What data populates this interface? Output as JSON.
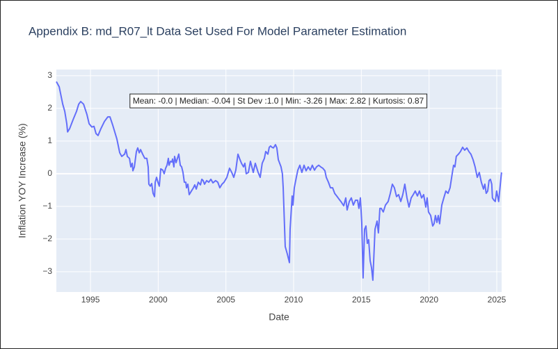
{
  "chart_data": {
    "type": "line",
    "title": "Appendix B: md_R07_lt Data Set Used For Model Parameter Estimation",
    "xlabel": "Date",
    "ylabel": "Inflation YOY Increase (%)",
    "annotation": "Mean: -0.0 | Median: -0.04 | St Dev :1.0 | Min: -3.26 | Max: 2.82 | Kurtosis: 0.87",
    "color": "#636efa",
    "grid": true,
    "xlim": [
      1992.48,
      2025.36
    ],
    "ylim": [
      -3.62,
      3.19
    ],
    "xticks": [
      1995,
      2000,
      2005,
      2010,
      2015,
      2020,
      2025
    ],
    "yticks": [
      {
        "value": -3,
        "label": "−3"
      },
      {
        "value": -2,
        "label": "−2"
      },
      {
        "value": -1,
        "label": "−1"
      },
      0,
      1,
      2,
      3
    ],
    "x": [
      1992.48,
      1992.69,
      1992.95,
      1993.1,
      1993.25,
      1993.31,
      1993.46,
      1993.72,
      1993.97,
      1994.13,
      1994.28,
      1994.49,
      1994.74,
      1994.9,
      1995.1,
      1995.26,
      1995.41,
      1995.56,
      1995.77,
      1996.03,
      1996.28,
      1996.44,
      1996.64,
      1996.95,
      1997.16,
      1997.31,
      1997.52,
      1997.62,
      1997.72,
      1997.88,
      1997.98,
      1998.08,
      1998.13,
      1998.24,
      1998.39,
      1998.49,
      1998.6,
      1998.7,
      1998.85,
      1999.01,
      1999.16,
      1999.26,
      1999.31,
      1999.42,
      1999.52,
      1999.62,
      1999.73,
      1999.78,
      1999.88,
      1999.98,
      2000.08,
      2000.19,
      2000.34,
      2000.44,
      2000.55,
      2000.65,
      2000.75,
      2000.8,
      2000.91,
      2001.01,
      2001.06,
      2001.16,
      2001.21,
      2001.32,
      2001.42,
      2001.52,
      2001.63,
      2001.73,
      2001.83,
      2001.93,
      2002.04,
      2002.09,
      2002.19,
      2002.29,
      2002.45,
      2002.6,
      2002.7,
      2002.81,
      2002.96,
      2003.12,
      2003.22,
      2003.32,
      2003.42,
      2003.58,
      2003.73,
      2003.89,
      2004.04,
      2004.24,
      2004.4,
      2004.55,
      2004.71,
      2004.86,
      2005.07,
      2005.27,
      2005.43,
      2005.58,
      2005.73,
      2005.89,
      2006.04,
      2006.15,
      2006.3,
      2006.4,
      2006.5,
      2006.66,
      2006.81,
      2007.02,
      2007.17,
      2007.38,
      2007.53,
      2007.68,
      2007.84,
      2007.94,
      2008.1,
      2008.2,
      2008.3,
      2008.4,
      2008.51,
      2008.66,
      2008.76,
      2008.87,
      2009.07,
      2009.17,
      2009.23,
      2009.38,
      2009.53,
      2009.69,
      2009.74,
      2009.89,
      2009.95,
      2010.05,
      2010.2,
      2010.31,
      2010.46,
      2010.61,
      2010.77,
      2010.92,
      2011.08,
      2011.23,
      2011.38,
      2011.54,
      2011.69,
      2011.85,
      2012.0,
      2012.15,
      2012.31,
      2012.41,
      2012.57,
      2012.72,
      2012.88,
      2013.03,
      2013.18,
      2013.34,
      2013.49,
      2013.7,
      2013.85,
      2013.95,
      2014.11,
      2014.26,
      2014.41,
      2014.57,
      2014.72,
      2014.82,
      2014.93,
      2015.03,
      2015.13,
      2015.24,
      2015.34,
      2015.44,
      2015.54,
      2015.65,
      2015.75,
      2015.85,
      2016.01,
      2016.16,
      2016.26,
      2016.37,
      2016.47,
      2016.62,
      2016.78,
      2016.98,
      2017.14,
      2017.29,
      2017.44,
      2017.6,
      2017.75,
      2017.91,
      2018.06,
      2018.21,
      2018.37,
      2018.52,
      2018.68,
      2018.83,
      2018.98,
      2019.14,
      2019.29,
      2019.45,
      2019.6,
      2019.76,
      2019.86,
      2019.96,
      2020.12,
      2020.27,
      2020.37,
      2020.47,
      2020.58,
      2020.68,
      2020.78,
      2020.94,
      2021.09,
      2021.24,
      2021.4,
      2021.55,
      2021.71,
      2021.81,
      2021.91,
      2022.01,
      2022.17,
      2022.32,
      2022.48,
      2022.63,
      2022.79,
      2022.94,
      2023.09,
      2023.25,
      2023.4,
      2023.56,
      2023.71,
      2023.86,
      2024.02,
      2024.12,
      2024.22,
      2024.33,
      2024.43,
      2024.53,
      2024.63,
      2024.68,
      2024.79,
      2024.89,
      2024.99,
      2025.14,
      2025.25,
      2025.35
    ],
    "values": [
      2.82,
      2.66,
      2.13,
      1.91,
      1.53,
      1.28,
      1.38,
      1.66,
      1.91,
      2.13,
      2.21,
      2.13,
      1.81,
      1.53,
      1.43,
      1.45,
      1.23,
      1.17,
      1.38,
      1.6,
      1.74,
      1.74,
      1.49,
      1.06,
      0.64,
      0.53,
      0.6,
      0.74,
      0.53,
      0.47,
      0.21,
      0.32,
      0.09,
      0.21,
      0.68,
      0.79,
      0.64,
      0.74,
      0.6,
      0.47,
      0.47,
      0.21,
      -0.32,
      -0.38,
      -0.3,
      -0.6,
      -0.7,
      -0.26,
      -0.11,
      -0.26,
      -0.38,
      0.15,
      0.11,
      0,
      0.17,
      0.26,
      0.47,
      0.26,
      0.38,
      0.36,
      0.45,
      0.21,
      0.53,
      0.34,
      0.47,
      0.6,
      0.26,
      0.21,
      0.04,
      -0.26,
      -0.26,
      -0.43,
      -0.32,
      -0.64,
      -0.53,
      -0.43,
      -0.34,
      -0.47,
      -0.26,
      -0.34,
      -0.17,
      -0.21,
      -0.32,
      -0.21,
      -0.26,
      -0.17,
      -0.28,
      -0.21,
      -0.26,
      -0.43,
      -0.32,
      -0.26,
      -0.11,
      0.17,
      0.04,
      -0.11,
      0.11,
      0.6,
      0.43,
      0.32,
      0.21,
      0.32,
      0,
      0.04,
      0.38,
      0.04,
      0.32,
      0.04,
      -0.11,
      0.32,
      0.47,
      0.68,
      0.6,
      0.81,
      0.85,
      0.81,
      0.79,
      0.89,
      0.79,
      0.43,
      0.21,
      0,
      -0.43,
      -2.23,
      -2.45,
      -2.72,
      -1.7,
      -0.68,
      -0.96,
      -0.43,
      -0.11,
      0.11,
      0.26,
      0.04,
      0.26,
      0.09,
      0.21,
      0.11,
      0.26,
      0.11,
      0.21,
      0.26,
      0.21,
      0.17,
      0.09,
      -0.11,
      -0.26,
      -0.43,
      -0.43,
      -0.6,
      -0.68,
      -0.77,
      -0.85,
      -0.98,
      -0.74,
      -1.11,
      -0.85,
      -0.74,
      -0.96,
      -0.81,
      -0.81,
      -1.06,
      -0.74,
      -1.49,
      -3.19,
      -1.7,
      -1.6,
      -2.13,
      -2.02,
      -2.66,
      -2.87,
      -3.26,
      -1.7,
      -1.45,
      -1.81,
      -1.06,
      -1.06,
      -1.17,
      -0.96,
      -0.85,
      -0.6,
      -0.32,
      -0.43,
      -0.7,
      -0.64,
      -0.85,
      -0.64,
      -0.32,
      -0.74,
      -1.02,
      -0.74,
      -0.64,
      -0.53,
      -0.68,
      -0.53,
      -0.74,
      -0.64,
      -1.02,
      -0.74,
      -1.17,
      -1.28,
      -1.6,
      -1.53,
      -1.28,
      -1.49,
      -1.28,
      -1.53,
      -0.96,
      -0.74,
      -0.53,
      -0.6,
      -0.43,
      0,
      0.26,
      0.21,
      0.53,
      0.6,
      0.68,
      0.81,
      0.72,
      0.79,
      0.68,
      0.6,
      0.43,
      0.21,
      -0.11,
      0.04,
      -0.26,
      -0.47,
      -0.32,
      -0.6,
      -0.53,
      -0.21,
      -0.17,
      -0.32,
      -0.74,
      -0.81,
      -0.85,
      -0.53,
      -0.85,
      -0.38,
      0.04
    ]
  }
}
